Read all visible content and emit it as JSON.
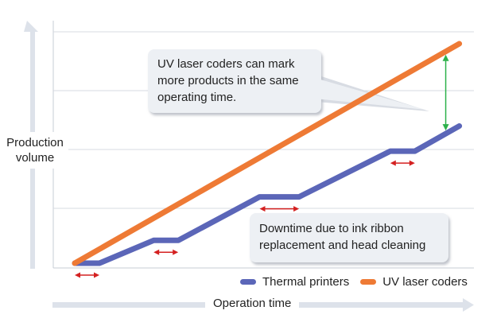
{
  "chart_data": {
    "type": "line",
    "xlabel": "Operation time",
    "ylabel": "Production volume",
    "series": [
      {
        "name": "Thermal printers",
        "color": "#5b66b8",
        "points": [
          [
            0,
            0
          ],
          [
            1,
            0
          ],
          [
            3.2,
            1.0
          ],
          [
            4.2,
            1.0
          ],
          [
            7.5,
            2.9
          ],
          [
            9.1,
            2.9
          ],
          [
            12.8,
            4.9
          ],
          [
            13.8,
            4.9
          ],
          [
            15.6,
            6.0
          ]
        ]
      },
      {
        "name": "UV laser coders",
        "color": "#ee7a35",
        "points": [
          [
            0,
            0
          ],
          [
            15.6,
            9.6
          ]
        ]
      }
    ],
    "downtime_periods": [
      [
        0,
        1
      ],
      [
        3.2,
        4.2
      ],
      [
        7.5,
        9.1
      ],
      [
        12.8,
        13.8
      ]
    ],
    "annotations": [
      {
        "lines": [
          "UV laser coders can mark",
          "more products in the same",
          "operating time."
        ]
      },
      {
        "lines": [
          "Downtime due to ink ribbon",
          "replacement and head cleaning"
        ]
      }
    ],
    "grid": true,
    "legend_position": "bottom-right",
    "arrow_color": "#d42121",
    "gap_arrow_color": "#2db14b",
    "axis_arrow_color": "#dde2ea"
  }
}
